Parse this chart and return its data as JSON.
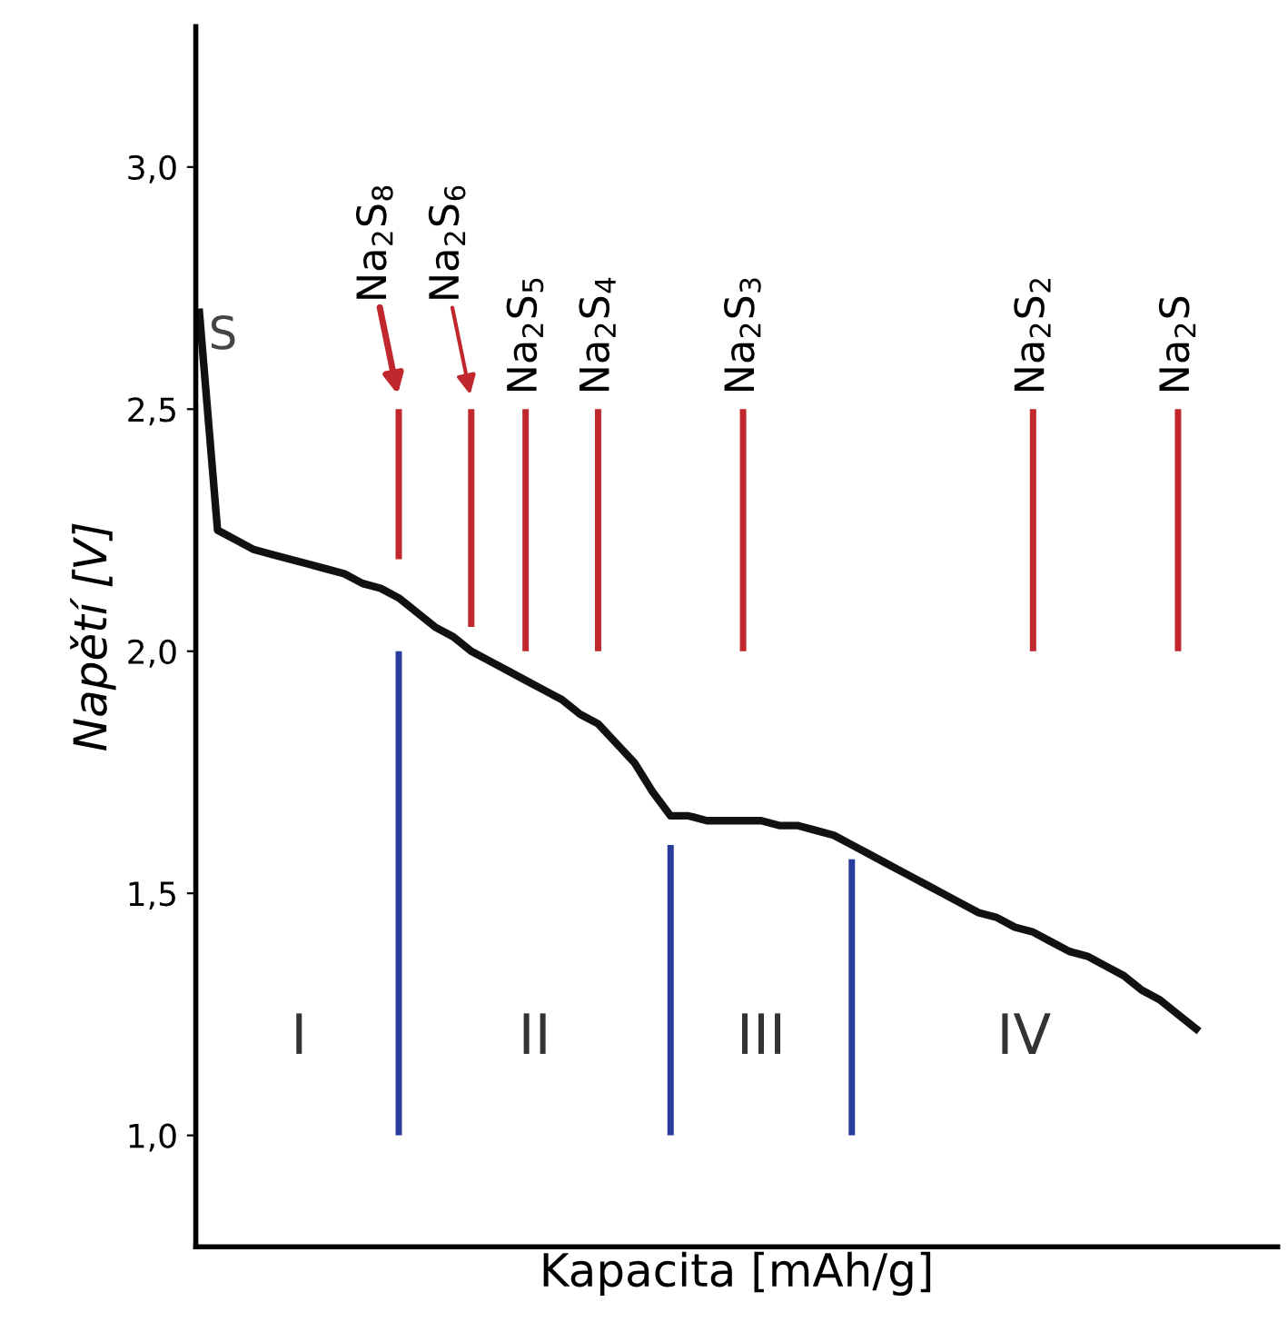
{
  "chart_data": {
    "type": "line",
    "xlabel": "Kapacita [mAh/g]",
    "ylabel": "Napětí [V]",
    "categories": [
      null,
      null,
      null,
      null,
      null,
      null,
      null,
      null,
      null,
      null,
      null,
      null,
      null,
      null,
      null,
      null,
      null,
      null,
      null,
      null,
      null,
      null,
      null,
      null,
      null,
      null,
      null,
      null,
      null,
      null,
      null,
      null,
      null,
      null,
      null,
      null,
      null,
      null,
      null,
      null,
      null,
      null,
      null,
      null,
      null,
      null,
      null,
      null,
      null,
      null,
      null,
      null,
      null,
      null,
      null,
      null
    ],
    "series": [
      {
        "color": "#111111",
        "values": [
          2.7,
          2.25,
          2.23,
          2.21,
          2.2,
          2.19,
          2.18,
          2.17,
          2.16,
          2.14,
          2.13,
          2.11,
          2.08,
          2.05,
          2.03,
          2.0,
          1.98,
          1.96,
          1.94,
          1.92,
          1.9,
          1.87,
          1.85,
          1.81,
          1.77,
          1.71,
          1.66,
          1.66,
          1.65,
          1.65,
          1.65,
          1.65,
          1.64,
          1.64,
          1.63,
          1.62,
          1.6,
          1.58,
          1.56,
          1.54,
          1.52,
          1.5,
          1.48,
          1.46,
          1.45,
          1.43,
          1.42,
          1.4,
          1.38,
          1.37,
          1.35,
          1.33,
          1.3,
          1.28,
          1.25,
          1.22
        ]
      },
      {
        "type": "bar",
        "color": "#c0282d",
        "values": [
          null,
          null,
          null,
          null,
          null,
          null,
          null,
          null,
          null,
          null,
          null,
          0.31,
          null,
          null,
          null,
          0.45,
          null,
          null,
          0.5,
          null,
          null,
          null,
          0.5,
          null,
          null,
          null,
          null,
          null,
          null,
          null,
          0.5,
          null,
          null,
          null,
          null,
          null,
          null,
          null,
          null,
          null,
          null,
          null,
          null,
          null,
          null,
          null,
          0.5,
          null,
          null,
          null,
          null,
          null,
          null,
          null,
          0.5,
          null
        ],
        "base": [
          null,
          null,
          null,
          null,
          null,
          null,
          null,
          null,
          null,
          null,
          null,
          2.19,
          null,
          null,
          null,
          2.05,
          null,
          null,
          2.0,
          null,
          null,
          null,
          2.0,
          null,
          null,
          null,
          null,
          null,
          null,
          null,
          2.0,
          null,
          null,
          null,
          null,
          null,
          null,
          null,
          null,
          null,
          null,
          null,
          null,
          null,
          null,
          null,
          2.0,
          null,
          null,
          null,
          null,
          null,
          null,
          null,
          2.0,
          null
        ],
        "value_labels": [
          null,
          null,
          null,
          null,
          null,
          null,
          null,
          null,
          null,
          null,
          null,
          "Na$_{2}$S$_{8}$",
          null,
          null,
          null,
          "Na$_{2}$S$_{6}$",
          null,
          null,
          "Na$_{2}$S$_{5}$",
          null,
          null,
          null,
          "Na$_{2}$S$_{4}$",
          null,
          null,
          null,
          null,
          null,
          null,
          null,
          "Na$_{2}$S$_{3}$",
          null,
          null,
          null,
          null,
          null,
          null,
          null,
          null,
          null,
          null,
          null,
          null,
          null,
          null,
          null,
          "Na$_{2}$S$_{2}$",
          null,
          null,
          null,
          null,
          null,
          null,
          null,
          "Na$_{2}$S",
          null
        ]
      },
      {
        "type": "bar",
        "color": "#2a3c9c",
        "values": [
          null,
          null,
          null,
          null,
          null,
          null,
          null,
          null,
          null,
          null,
          null,
          1.0,
          null,
          null,
          null,
          null,
          null,
          null,
          null,
          null,
          null,
          null,
          null,
          null,
          null,
          null,
          0.6,
          null,
          null,
          null,
          null,
          null,
          null,
          null,
          null,
          null,
          0.57,
          null,
          null,
          null,
          null,
          null,
          null,
          null,
          null,
          null,
          null,
          null,
          null,
          null,
          null,
          null,
          null,
          null,
          null,
          null
        ],
        "base": [
          null,
          null,
          null,
          null,
          null,
          null,
          null,
          null,
          null,
          null,
          null,
          1.0,
          null,
          null,
          null,
          null,
          null,
          null,
          null,
          null,
          null,
          null,
          null,
          null,
          null,
          null,
          1.0,
          null,
          null,
          null,
          null,
          null,
          null,
          null,
          null,
          null,
          1.0,
          null,
          null,
          null,
          null,
          null,
          null,
          null,
          null,
          null,
          null,
          null,
          null,
          null,
          null,
          null,
          null,
          null,
          null,
          null
        ]
      }
    ],
    "annotations": [
      "S",
      "I",
      "II",
      "III",
      "IV"
    ],
    "ylim": [
      0.77,
      3.29
    ],
    "yticks": [
      {
        "value": 1.0,
        "label": "1,0"
      },
      {
        "value": 1.5,
        "label": "1,5"
      },
      {
        "value": 2.0,
        "label": "2,0"
      },
      {
        "value": 2.5,
        "label": "2,5"
      },
      {
        "value": 3.0,
        "label": "3,0"
      }
    ],
    "tick_labels": "y",
    "grid": false,
    "legend": false
  }
}
